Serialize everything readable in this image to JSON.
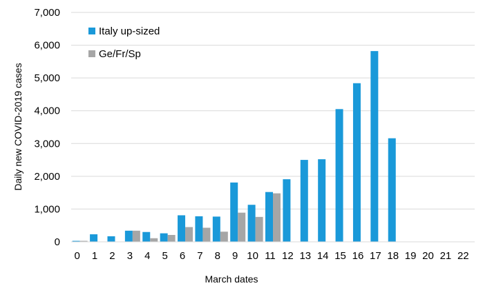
{
  "chart_data": {
    "type": "bar",
    "title": "",
    "xlabel": "March dates",
    "ylabel": "Daily new COVID-2019  cases",
    "ylim": [
      0,
      7000
    ],
    "yticks": [
      0,
      1000,
      2000,
      3000,
      4000,
      5000,
      6000,
      7000
    ],
    "ytick_labels": [
      "0",
      "1,000",
      "2,000",
      "3,000",
      "4,000",
      "5,000",
      "6,000",
      "7,000"
    ],
    "grid": true,
    "legend_position": "top-left",
    "categories": [
      "0",
      "1",
      "2",
      "3",
      "4",
      "5",
      "6",
      "7",
      "8",
      "9",
      "10",
      "11",
      "12",
      "13",
      "14",
      "15",
      "16",
      "17",
      "18",
      "19",
      "20",
      "21",
      "22"
    ],
    "series": [
      {
        "name": "Italy up-sized",
        "color": "#1a99d9",
        "values": [
          30,
          230,
          170,
          340,
          300,
          260,
          810,
          780,
          770,
          1810,
          1130,
          1520,
          1910,
          2500,
          2520,
          4050,
          4840,
          5820,
          3160,
          0,
          0,
          0,
          0
        ]
      },
      {
        "name": "Ge/Fr/Sp",
        "color": "#a6a6a6",
        "values": [
          30,
          0,
          0,
          340,
          110,
          210,
          450,
          430,
          310,
          890,
          760,
          1480,
          0,
          0,
          0,
          0,
          0,
          0,
          0,
          0,
          0,
          0,
          0
        ]
      }
    ]
  }
}
